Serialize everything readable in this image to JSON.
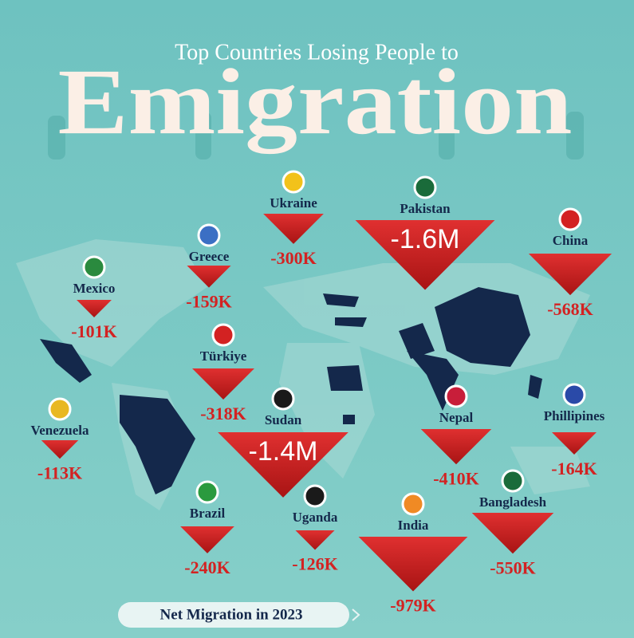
{
  "chart_data": {
    "type": "triangle-map",
    "title": "Top Countries Losing People to",
    "subtitle": "Emigration",
    "footer": "Net Migration in 2023",
    "color": "#d32222",
    "categories": [
      "Mexico",
      "Greece",
      "Ukraine",
      "Pakistan",
      "China",
      "Türkiye",
      "Sudan",
      "Venezuela",
      "Nepal",
      "Phillipines",
      "Brazil",
      "Uganda",
      "India",
      "Bangladesh"
    ],
    "values": [
      -101000,
      -159000,
      -300000,
      -1600000,
      -568000,
      -318000,
      -1400000,
      -113000,
      -410000,
      -164000,
      -240000,
      -126000,
      -979000,
      -550000
    ],
    "value_labels": [
      "-101K",
      "-159K",
      "-300K",
      "-1.6M",
      "-568K",
      "-318K",
      "-1.4M",
      "-113K",
      "-410K",
      "-164K",
      "-240K",
      "-126K",
      "-979K",
      "-550K"
    ]
  }
}
